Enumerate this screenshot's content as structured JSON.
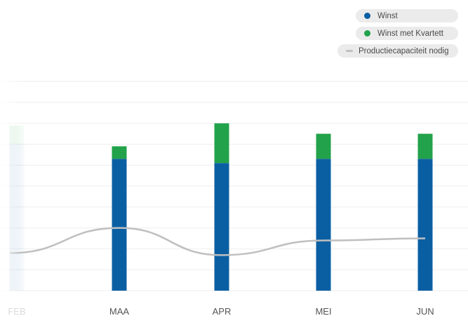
{
  "legend": {
    "profit_label": "Winst",
    "profit_quartet_label": "Winst met Kvartett",
    "capacity_label": "Productiecapaciteit nodig"
  },
  "colors": {
    "profit": "#0a5fa3",
    "profit_quartet": "#22a24a",
    "capacity_line": "#bfbfbf",
    "grid": "#eeeeee",
    "legend_bg": "#ebebeb"
  },
  "chart_data": {
    "type": "bar",
    "stacked": true,
    "categories": [
      "FEB",
      "MAA",
      "APR",
      "MEI",
      "JUN"
    ],
    "ylim": [
      0,
      100
    ],
    "grid": true,
    "legend_placement": "top-right",
    "series": [
      {
        "name": "Winst",
        "kind": "bar",
        "values": [
          70,
          63,
          61,
          63,
          63
        ]
      },
      {
        "name": "Winst met Kvartett",
        "kind": "bar",
        "values": [
          9,
          6,
          19,
          12,
          12
        ]
      },
      {
        "name": "Productiecapaciteit nodig",
        "kind": "line",
        "values": [
          18,
          30,
          17,
          24,
          25
        ]
      }
    ],
    "faded_categories": [
      "FEB"
    ]
  }
}
